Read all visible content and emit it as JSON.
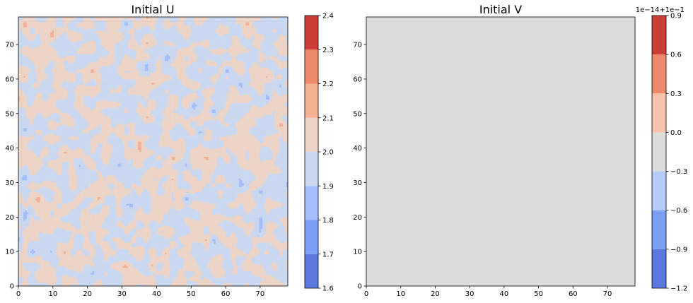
{
  "chart_data": [
    {
      "type": "heatmap",
      "subtype": "filled-contour",
      "title": "Initial U",
      "colormap": "coolwarm",
      "xlim": [
        0,
        78
      ],
      "ylim": [
        0,
        78
      ],
      "x_ticks": [
        0,
        10,
        20,
        30,
        40,
        50,
        60,
        70
      ],
      "y_ticks": [
        0,
        10,
        20,
        30,
        40,
        50,
        60,
        70
      ],
      "x_tick_labels": [
        "0",
        "10",
        "20",
        "30",
        "40",
        "50",
        "60",
        "70"
      ],
      "y_tick_labels": [
        "0",
        "10",
        "20",
        "30",
        "40",
        "50",
        "60",
        "70"
      ],
      "colorbar": {
        "levels": [
          1.6,
          1.7,
          1.8,
          1.9,
          2.0,
          2.1,
          2.2,
          2.3,
          2.4
        ],
        "tick_labels": [
          "1.6",
          "1.7",
          "1.8",
          "1.9",
          "2.0",
          "2.1",
          "2.2",
          "2.3",
          "2.4"
        ],
        "colors": [
          "#5a78e0",
          "#7b9ff5",
          "#a3bffb",
          "#c9d7f0",
          "#ecd3c5",
          "#f6b094",
          "#ec8a6b",
          "#cb3e38"
        ]
      }
    },
    {
      "type": "heatmap",
      "subtype": "filled-contour",
      "title": "Initial V",
      "colormap": "coolwarm",
      "uniform_value": 0.1,
      "uniform_color": "#dcdcdc",
      "xlim": [
        0,
        78
      ],
      "ylim": [
        0,
        78
      ],
      "x_ticks": [
        0,
        10,
        20,
        30,
        40,
        50,
        60,
        70
      ],
      "y_ticks": [
        0,
        10,
        20,
        30,
        40,
        50,
        60,
        70
      ],
      "x_tick_labels": [
        "0",
        "10",
        "20",
        "30",
        "40",
        "50",
        "60",
        "70"
      ],
      "y_tick_labels": [
        "0",
        "10",
        "20",
        "30",
        "40",
        "50",
        "60",
        "70"
      ],
      "colorbar": {
        "offset_label": "1e−14+1e−1",
        "levels": [
          -1.2,
          -0.9,
          -0.6,
          -0.3,
          0.0,
          0.3,
          0.6,
          0.9
        ],
        "tick_labels": [
          "−1.2",
          "−0.9",
          "−0.6",
          "−0.3",
          "0.0",
          "0.3",
          "0.6",
          "0.9"
        ],
        "colors": [
          "#5a78e0",
          "#7b9ff5",
          "#b4cbfb",
          "#dcdcdc",
          "#f6c3aa",
          "#ec8a6b",
          "#cb3e38"
        ]
      }
    }
  ]
}
